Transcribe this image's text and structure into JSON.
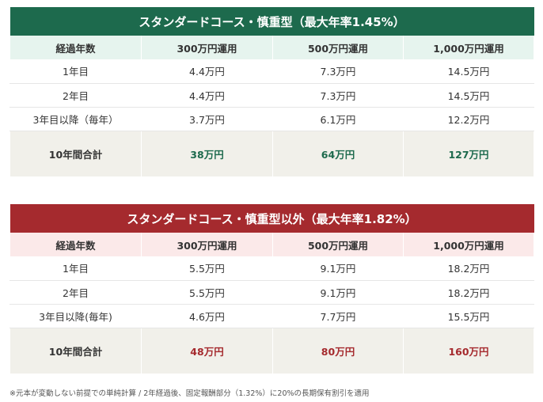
{
  "table1": {
    "title": "スタンダードコース・慎重型（最大年率1.45%）",
    "headers": [
      "経過年数",
      "300万円運用",
      "500万円運用",
      "1,000万円運用"
    ],
    "rows": [
      [
        "1年目",
        "4.4万円",
        "7.3万円",
        "14.5万円"
      ],
      [
        "2年目",
        "4.4万円",
        "7.3万円",
        "14.5万円"
      ],
      [
        "3年目以降（毎年）",
        "3.7万円",
        "6.1万円",
        "12.2万円"
      ]
    ],
    "total": [
      "10年間合計",
      "38万円",
      "64万円",
      "127万円"
    ]
  },
  "table2": {
    "title": "スタンダードコース・慎重型以外（最大年率1.82%）",
    "headers": [
      "経過年数",
      "300万円運用",
      "500万円運用",
      "1,000万円運用"
    ],
    "rows": [
      [
        "1年目",
        "5.5万円",
        "9.1万円",
        "18.2万円"
      ],
      [
        "2年目",
        "5.5万円",
        "9.1万円",
        "18.2万円"
      ],
      [
        "3年目以降(毎年)",
        "4.6万円",
        "7.7万円",
        "15.5万円"
      ]
    ],
    "total": [
      "10年間合計",
      "48万円",
      "80万円",
      "160万円"
    ]
  },
  "footnote": "※元本が変動しない前提での単純計算 / 2年経過後、固定報酬部分（1.32%）に20%の長期保有割引を適用",
  "colors": {
    "green": "#1d6a4d",
    "red": "#a52a2e",
    "green_tint": "#e6f4ee",
    "red_tint": "#fbe9e9",
    "total_bg": "#f1f0ea"
  }
}
